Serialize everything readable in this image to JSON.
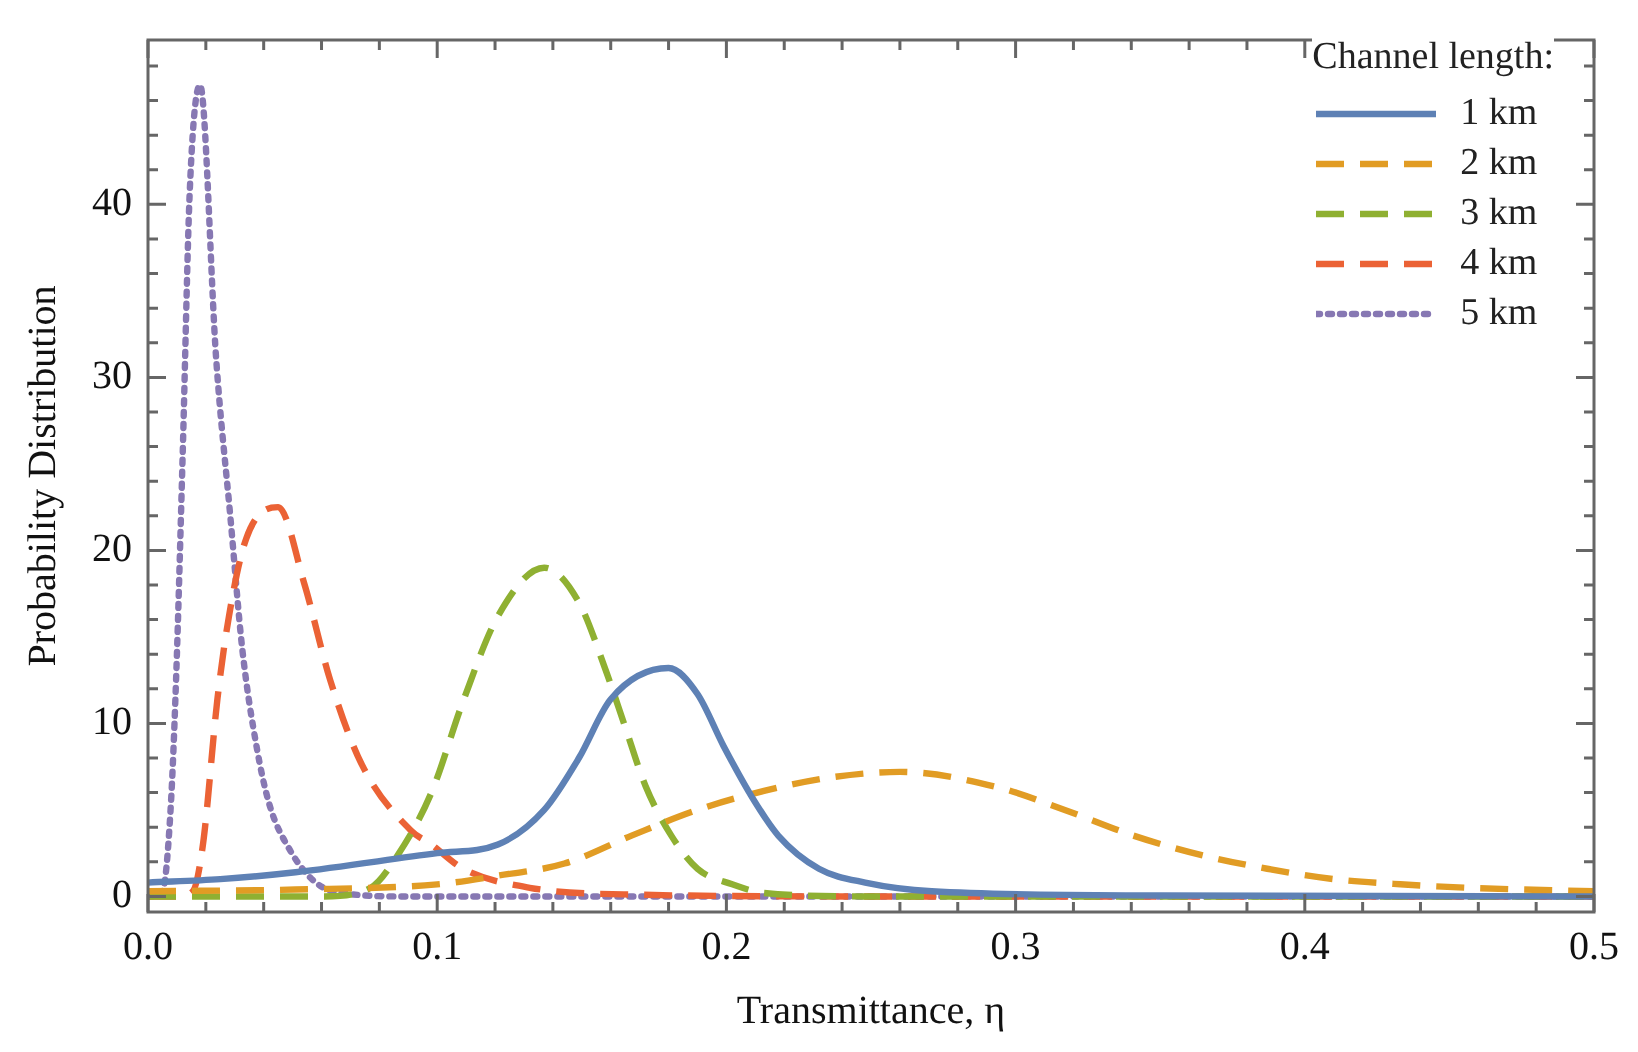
{
  "chart_data": {
    "type": "line",
    "xlabel": "Transmittance, η",
    "ylabel": "Probability Distribution",
    "legend_title": "Channel length:",
    "legend": "top right",
    "grid": false,
    "marker": "none",
    "xlim": [
      0,
      0.5
    ],
    "xticks": [
      {
        "value": 0,
        "label": "0.0"
      },
      0.1,
      0.2,
      0.3,
      0.4,
      0.5
    ],
    "ylim": [
      -0.9,
      49.5
    ],
    "yticks": [
      0,
      10,
      20,
      30,
      40
    ],
    "series": [
      {
        "name": "1 km",
        "color": "#5e81b5",
        "line_style": "solid",
        "x": [
          0,
          0.025,
          0.051,
          0.1,
          0.121,
          0.137,
          0.149,
          0.16,
          0.18,
          0.19,
          0.199,
          0.209,
          0.218,
          0.232,
          0.248,
          0.271,
          0.35,
          0.5
        ],
        "values": [
          0.8,
          1.0,
          1.4,
          2.5,
          3.0,
          5,
          8,
          11.4,
          13.2,
          11.7,
          8.7,
          5.7,
          3.5,
          1.6,
          0.8,
          0.3,
          0.05,
          0
        ]
      },
      {
        "name": "2 km",
        "color": "#e19c24",
        "line_style": "dashed",
        "x": [
          0,
          0.051,
          0.1,
          0.121,
          0.144,
          0.167,
          0.19,
          0.213,
          0.237,
          0.26,
          0.294,
          0.317,
          0.341,
          0.364,
          0.387,
          0.41,
          0.433,
          0.456,
          0.5
        ],
        "values": [
          0.3,
          0.4,
          0.7,
          1.2,
          1.9,
          3.5,
          5.0,
          6.1,
          6.9,
          7.2,
          6.3,
          5.0,
          3.5,
          2.4,
          1.6,
          1.0,
          0.7,
          0.5,
          0.3
        ]
      },
      {
        "name": "3 km",
        "color": "#8fb032",
        "line_style": "dashed",
        "x": [
          0,
          0.06,
          0.077,
          0.086,
          0.098,
          0.109,
          0.121,
          0.137,
          0.149,
          0.158,
          0.165,
          0.172,
          0.181,
          0.19,
          0.202,
          0.213,
          0.25,
          0.5
        ],
        "values": [
          0,
          0,
          0.5,
          2.3,
          6,
          11.3,
          16.2,
          19.0,
          17,
          13.2,
          9.8,
          6.4,
          3.5,
          1.6,
          0.7,
          0.2,
          0,
          0
        ]
      },
      {
        "name": "4 km",
        "color": "#eb6235",
        "line_style": "dashed",
        "x": [
          0,
          0.01,
          0.0155,
          0.019,
          0.024,
          0.028,
          0.034,
          0.045,
          0.054,
          0.063,
          0.074,
          0.091,
          0.098,
          0.109,
          0.132,
          0.17,
          0.25,
          0.5
        ],
        "values": [
          0,
          0,
          0.3,
          3,
          11.4,
          16.2,
          20.7,
          22.5,
          18.1,
          12.5,
          7.6,
          3.8,
          3.0,
          1.6,
          0.5,
          0.1,
          0,
          0
        ]
      },
      {
        "name": "5 km",
        "color": "#8778b3",
        "line_style": "dotted",
        "x": [
          0,
          0.005,
          0.0078,
          0.0097,
          0.012,
          0.0144,
          0.018,
          0.0236,
          0.0285,
          0.0326,
          0.0375,
          0.042,
          0.049,
          0.058,
          0.067,
          0.09,
          0.2,
          0.5
        ],
        "values": [
          0,
          0.3,
          5,
          12.5,
          25.6,
          40.6,
          46.9,
          31,
          21.9,
          14.3,
          8.7,
          5.3,
          2.7,
          0.8,
          0.2,
          0,
          0,
          0
        ]
      }
    ]
  }
}
